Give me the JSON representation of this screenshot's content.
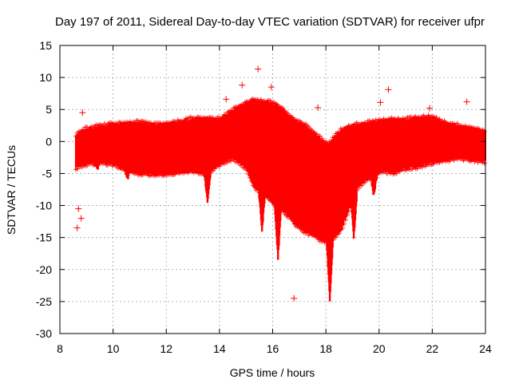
{
  "chart_data": {
    "type": "scatter",
    "title": "Day 197 of 2011, Sidereal Day-to-day VTEC variation (SDTVAR) for receiver ufpr",
    "xlabel": "GPS time / hours",
    "ylabel": "SDTVAR / TECUs",
    "xlim": [
      8,
      24
    ],
    "ylim": [
      -30,
      15
    ],
    "x_ticks": [
      8,
      10,
      12,
      14,
      16,
      18,
      20,
      22,
      24
    ],
    "y_ticks": [
      15,
      10,
      5,
      0,
      -5,
      -10,
      -15,
      -20,
      -25,
      -30
    ],
    "grid": true,
    "marker": "+",
    "color": "#ff0000",
    "series": [
      {
        "name": "SDTVAR",
        "envelope": {
          "x": [
            8.6,
            8.9,
            9.5,
            10.0,
            10.5,
            11.0,
            11.5,
            12.0,
            12.5,
            13.0,
            13.5,
            14.0,
            14.5,
            15.0,
            15.3,
            15.6,
            15.9,
            16.1,
            16.3,
            16.6,
            16.9,
            17.2,
            17.5,
            17.7,
            17.9,
            18.1,
            18.3,
            18.6,
            18.9,
            19.2,
            19.5,
            19.8,
            20.1,
            20.5,
            21.0,
            21.5,
            22.0,
            22.5,
            23.0,
            23.5,
            24.0
          ],
          "upper": [
            0.8,
            1.8,
            2.3,
            2.6,
            2.8,
            2.9,
            2.6,
            2.7,
            3.0,
            3.5,
            3.6,
            3.4,
            4.8,
            6.0,
            6.4,
            6.2,
            6.0,
            5.8,
            5.2,
            4.0,
            3.0,
            2.5,
            1.5,
            0.8,
            0.0,
            -0.5,
            0.5,
            1.8,
            2.4,
            2.6,
            2.8,
            3.0,
            3.2,
            3.3,
            3.4,
            3.6,
            3.8,
            2.8,
            2.4,
            2.0,
            1.5
          ],
          "lower": [
            -4.0,
            -3.5,
            -3.2,
            -3.5,
            -4.2,
            -5.0,
            -5.0,
            -5.0,
            -4.8,
            -4.6,
            -5.0,
            -3.5,
            -2.5,
            -4.0,
            -7.0,
            -8.0,
            -9.0,
            -10.0,
            -10.5,
            -11.5,
            -13.0,
            -14.0,
            -14.5,
            -15.0,
            -15.5,
            -15.5,
            -15.0,
            -13.5,
            -10.0,
            -7.0,
            -6.0,
            -5.5,
            -4.5,
            -4.8,
            -4.2,
            -3.8,
            -3.2,
            -2.8,
            -2.5,
            -2.8,
            -3.0
          ]
        },
        "dips": [
          {
            "x": 9.4,
            "y": -4.5
          },
          {
            "x": 10.55,
            "y": -6.0
          },
          {
            "x": 13.55,
            "y": -9.5
          },
          {
            "x": 15.6,
            "y": -14.0
          },
          {
            "x": 16.2,
            "y": -18.3
          },
          {
            "x": 16.9,
            "y": -13.0
          },
          {
            "x": 17.6,
            "y": -14.0
          },
          {
            "x": 18.15,
            "y": -24.8
          },
          {
            "x": 19.05,
            "y": -15.0
          },
          {
            "x": 19.8,
            "y": -8.5
          }
        ],
        "outliers": [
          {
            "x": 8.85,
            "y": 4.5
          },
          {
            "x": 14.25,
            "y": 6.6
          },
          {
            "x": 14.85,
            "y": 8.8
          },
          {
            "x": 15.45,
            "y": 11.3
          },
          {
            "x": 15.95,
            "y": 8.5
          },
          {
            "x": 17.7,
            "y": 5.3
          },
          {
            "x": 20.05,
            "y": 6.1
          },
          {
            "x": 20.35,
            "y": 8.1
          },
          {
            "x": 21.9,
            "y": 5.2
          },
          {
            "x": 23.3,
            "y": 6.2
          },
          {
            "x": 16.8,
            "y": -24.5
          },
          {
            "x": 8.65,
            "y": -13.5
          },
          {
            "x": 8.8,
            "y": -12.0
          },
          {
            "x": 8.7,
            "y": -10.5
          }
        ]
      }
    ]
  }
}
